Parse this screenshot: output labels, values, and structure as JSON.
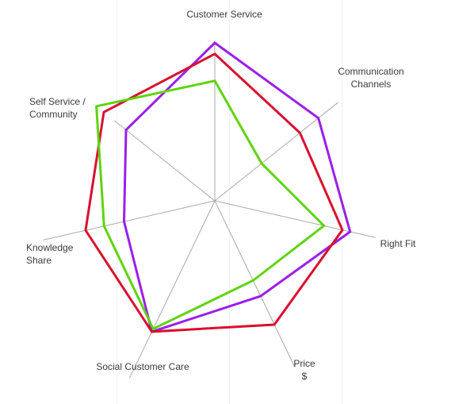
{
  "chart_data": {
    "type": "radar",
    "title": "",
    "axes": [
      {
        "label": [
          "Customer Service"
        ]
      },
      {
        "label": [
          "Communication",
          "Channels"
        ]
      },
      {
        "label": [
          "Right Fit"
        ]
      },
      {
        "label": [
          "Price",
          "$"
        ]
      },
      {
        "label": [
          "Social Customer Care"
        ]
      },
      {
        "label": [
          "Knowledge",
          "Share"
        ]
      },
      {
        "label": [
          "Self Service /",
          "Community"
        ]
      }
    ],
    "range": [
      0,
      10
    ],
    "grid": true,
    "legend": "none",
    "series": [
      {
        "color": "#9b1fe8",
        "values": [
          10,
          8.4,
          8.8,
          6.7,
          9.2,
          5.9,
          7.2
        ]
      },
      {
        "color": "#d9102e",
        "values": [
          9.3,
          6.9,
          8.3,
          8.7,
          9.2,
          8.4,
          9.0
        ]
      },
      {
        "color": "#5fd40e",
        "values": [
          7.6,
          3.8,
          7.1,
          5.6,
          9.0,
          7.2,
          9.6
        ]
      }
    ]
  }
}
